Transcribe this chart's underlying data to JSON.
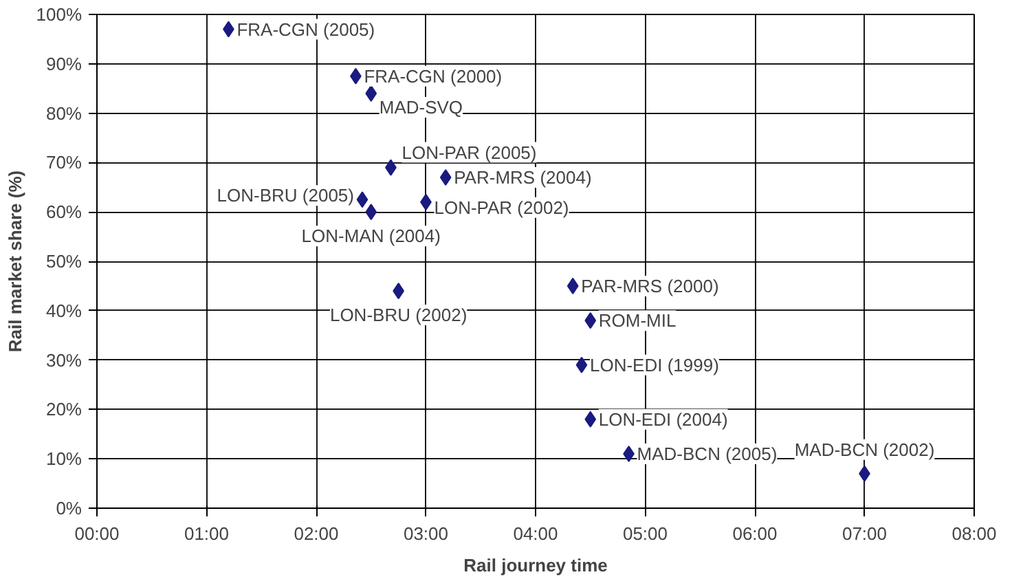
{
  "chart_data": {
    "type": "scatter",
    "xlabel": "Rail journey time",
    "ylabel": "Rail market share (%)",
    "x": [
      1.2,
      2.36,
      2.5,
      2.68,
      3.18,
      2.42,
      2.5,
      3.0,
      2.75,
      4.34,
      4.5,
      4.42,
      4.5,
      4.85,
      7.0
    ],
    "series": [
      {
        "color": "#1a1a80",
        "values": [
          97,
          87.5,
          84,
          69,
          67,
          62.5,
          60,
          62,
          44,
          45,
          38,
          29,
          18,
          11,
          7
        ]
      }
    ],
    "marker": "diamond",
    "grid": true,
    "xlim": [
      0,
      8
    ],
    "ylim": [
      0,
      100
    ],
    "xticks": [
      {
        "value": 0,
        "label": "00:00"
      },
      {
        "value": 1,
        "label": "01:00"
      },
      {
        "value": 2,
        "label": "02:00"
      },
      {
        "value": 3,
        "label": "03:00"
      },
      {
        "value": 4,
        "label": "04:00"
      },
      {
        "value": 5,
        "label": "05:00"
      },
      {
        "value": 6,
        "label": "06:00"
      },
      {
        "value": 7,
        "label": "07:00"
      },
      {
        "value": 8,
        "label": "08:00"
      }
    ],
    "yticks": [
      {
        "value": 0,
        "label": "0%"
      },
      {
        "value": 10,
        "label": "10%"
      },
      {
        "value": 20,
        "label": "20%"
      },
      {
        "value": 30,
        "label": "30%"
      },
      {
        "value": 40,
        "label": "40%"
      },
      {
        "value": 50,
        "label": "50%"
      },
      {
        "value": 60,
        "label": "60%"
      },
      {
        "value": 70,
        "label": "70%"
      },
      {
        "value": 80,
        "label": "80%"
      },
      {
        "value": 90,
        "label": "90%"
      },
      {
        "value": 100,
        "label": "100%"
      }
    ],
    "annotations": [
      {
        "text": "FRA-CGN (2005)",
        "x": 1.2,
        "y": 97
      },
      {
        "text": "FRA-CGN (2000)",
        "x": 2.36,
        "y": 87.5
      },
      {
        "text": "MAD-SVQ",
        "x": 2.5,
        "y": 84
      },
      {
        "text": "LON-PAR (2005)",
        "x": 2.68,
        "y": 69
      },
      {
        "text": "PAR-MRS (2004)",
        "x": 3.18,
        "y": 67
      },
      {
        "text": "LON-BRU (2005)",
        "x": 2.42,
        "y": 62.5
      },
      {
        "text": "LON-MAN (2004)",
        "x": 2.5,
        "y": 60
      },
      {
        "text": "LON-PAR (2002)",
        "x": 3.0,
        "y": 62
      },
      {
        "text": "LON-BRU (2002)",
        "x": 2.75,
        "y": 44
      },
      {
        "text": "PAR-MRS (2000)",
        "x": 4.34,
        "y": 45
      },
      {
        "text": "ROM-MIL",
        "x": 4.5,
        "y": 38
      },
      {
        "text": "LON-EDI (1999)",
        "x": 4.42,
        "y": 29
      },
      {
        "text": "LON-EDI (2004)",
        "x": 4.5,
        "y": 18
      },
      {
        "text": "MAD-BCN (2005)",
        "x": 4.85,
        "y": 11
      },
      {
        "text": "MAD-BCN (2002)",
        "x": 7.0,
        "y": 7
      }
    ]
  }
}
